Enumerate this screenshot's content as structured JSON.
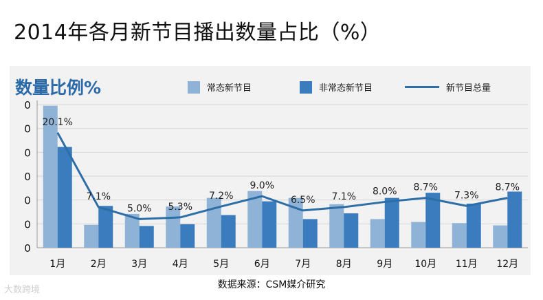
{
  "title": "2014年各月新节目播出数量占比（%）",
  "source": "数据来源：CSM媒介研究",
  "watermark": "大数跨境",
  "colors": {
    "regular": "#8fb3d7",
    "irregular": "#3a7cbd",
    "line": "#2e6ea6",
    "accent": "#2b6aa8",
    "panel": "#f2f2f2"
  },
  "chart_data": {
    "type": "bar",
    "title": "2014年各月新节目播出数量占比（%）",
    "ylabel": "数量比例%",
    "y_tick_labels": [
      "0",
      "0",
      "0",
      "0",
      "0",
      "0",
      "0"
    ],
    "ylim": [
      0,
      25
    ],
    "grid": true,
    "legend_position": "top",
    "categories": [
      "1月",
      "2月",
      "3月",
      "4月",
      "5月",
      "6月",
      "7月",
      "8月",
      "9月",
      "10月",
      "11月",
      "12月"
    ],
    "series": [
      {
        "name": "常态新节目",
        "type": "bar",
        "color": "#8fb3d7",
        "values": [
          24.8,
          4.0,
          5.9,
          7.2,
          8.7,
          9.9,
          8.7,
          7.6,
          5.0,
          4.5,
          4.3,
          3.9
        ]
      },
      {
        "name": "非常态新节目",
        "type": "bar",
        "color": "#3a7cbd",
        "values": [
          17.6,
          7.3,
          3.8,
          4.1,
          5.7,
          8.1,
          5.0,
          6.0,
          8.7,
          9.6,
          7.7,
          9.8
        ]
      },
      {
        "name": "新节目总量",
        "type": "line",
        "color": "#2e6ea6",
        "values": [
          20.1,
          7.1,
          5.0,
          5.3,
          7.2,
          9.0,
          6.5,
          7.1,
          8.0,
          8.7,
          7.3,
          8.7
        ],
        "labels": [
          "20.1%",
          "7.1%",
          "5.0%",
          "5.3%",
          "7.2%",
          "9.0%",
          "6.5%",
          "7.1%",
          "8.0%",
          "8.7%",
          "7.3%",
          "8.7%"
        ]
      }
    ]
  }
}
